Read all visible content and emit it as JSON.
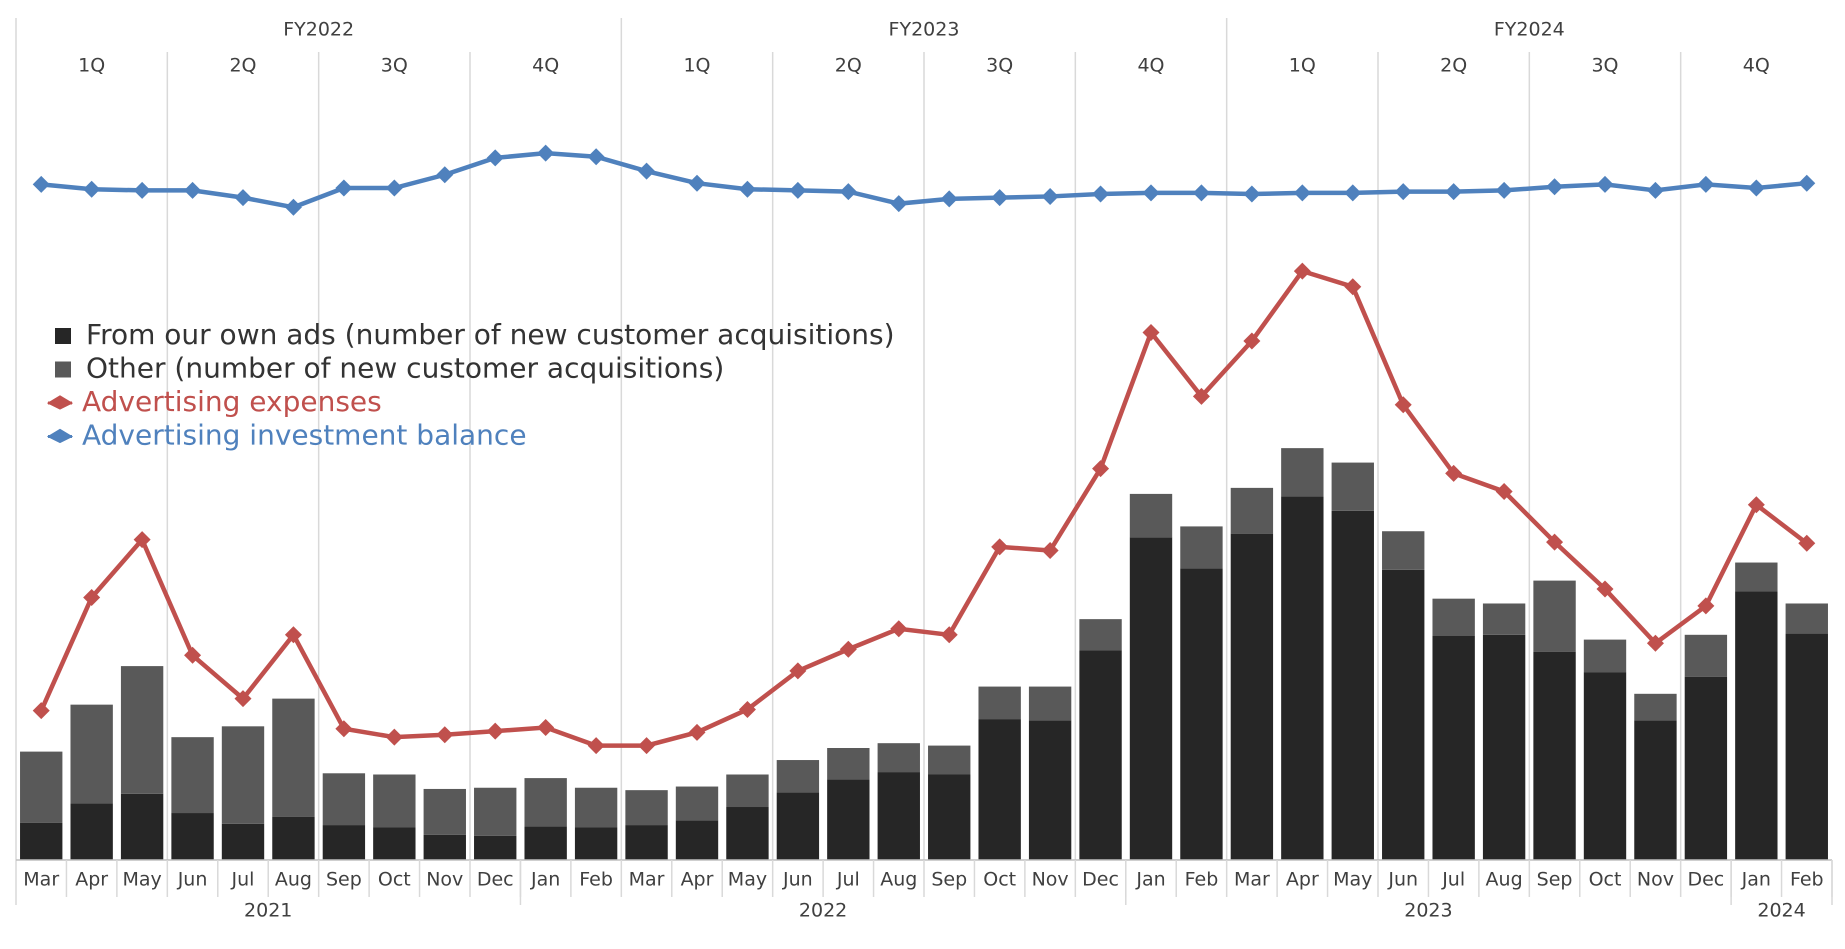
{
  "chart_data": {
    "type": "bar_line",
    "categories": [
      "Mar",
      "Apr",
      "May",
      "Jun",
      "Jul",
      "Aug",
      "Sep",
      "Oct",
      "Nov",
      "Dec",
      "Jan",
      "Feb",
      "Mar",
      "Apr",
      "May",
      "Jun",
      "Jul",
      "Aug",
      "Sep",
      "Oct",
      "Nov",
      "Dec",
      "Jan",
      "Feb",
      "Mar",
      "Apr",
      "May",
      "Jun",
      "Jul",
      "Aug",
      "Sep",
      "Oct",
      "Nov",
      "Dec",
      "Jan",
      "Feb"
    ],
    "years": [
      {
        "label": "2021",
        "months": 10
      },
      {
        "label": "2022",
        "months": 12
      },
      {
        "label": "2023",
        "months": 12
      },
      {
        "label": "2024",
        "months": 2
      }
    ],
    "fiscal_years": [
      "FY2022",
      "FY2023",
      "FY2024"
    ],
    "quarters": [
      "1Q",
      "2Q",
      "3Q",
      "4Q",
      "1Q",
      "2Q",
      "3Q",
      "4Q",
      "1Q",
      "2Q",
      "3Q",
      "4Q"
    ],
    "ylim": [
      0,
      700
    ],
    "series": [
      {
        "name": "From our own ads (number of new customer acquisitions)",
        "kind": "bar",
        "color": "#262626",
        "values": [
          31,
          47,
          55,
          39,
          30,
          36,
          29,
          27,
          21,
          20,
          28,
          27,
          29,
          33,
          44,
          56,
          67,
          73,
          71,
          117,
          116,
          174,
          268,
          242,
          271,
          302,
          290,
          241,
          186,
          187,
          173,
          156,
          116,
          152,
          223,
          188
        ]
      },
      {
        "name": "Other (number of new customer acquisitions)",
        "kind": "bar",
        "color": "#595959",
        "values": [
          59,
          82,
          106,
          63,
          81,
          98,
          43,
          44,
          38,
          40,
          40,
          33,
          29,
          28,
          27,
          27,
          26,
          24,
          24,
          27,
          28,
          26,
          36,
          35,
          38,
          40,
          40,
          32,
          31,
          26,
          59,
          27,
          22,
          35,
          24,
          25
        ]
      },
      {
        "name": "Advertising expenses",
        "kind": "line",
        "color": "#c0504d",
        "values": [
          124,
          218,
          266,
          170,
          134,
          187,
          109,
          102,
          104,
          107,
          110,
          95,
          95,
          106,
          125,
          157,
          175,
          192,
          187,
          260,
          257,
          325,
          438,
          385,
          431,
          489,
          476,
          378,
          321,
          306,
          264,
          225,
          180,
          211,
          295,
          263
        ]
      },
      {
        "name": "Advertising investment balance",
        "kind": "line",
        "color": "#4f81bd",
        "values": [
          561,
          557,
          556,
          556,
          550,
          542,
          558,
          558,
          569,
          583,
          587,
          584,
          572,
          562,
          557,
          556,
          555,
          545,
          549,
          550,
          551,
          553,
          554,
          554,
          553,
          554,
          554,
          555,
          555,
          556,
          559,
          561,
          556,
          561,
          558,
          562
        ]
      }
    ]
  }
}
